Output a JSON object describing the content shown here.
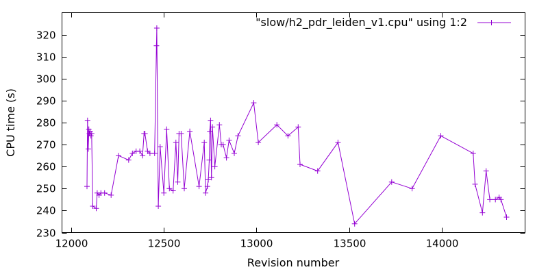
{
  "chart_data": {
    "type": "line",
    "title": "",
    "xlabel": "Revision number",
    "ylabel": "CPU time (s)",
    "xlim": [
      11950,
      14450
    ],
    "ylim": [
      230,
      330
    ],
    "xticks": [
      12000,
      12500,
      13000,
      13500,
      14000
    ],
    "yticks": [
      230,
      240,
      250,
      260,
      270,
      280,
      290,
      300,
      310,
      320
    ],
    "grid": false,
    "legend_position": "top-right",
    "marker": "plus",
    "color": "#9400D3",
    "series": [
      {
        "name": "\"slow/h2_pdr_leiden_v1.cpu\" using 1:2",
        "x": [
          12085,
          12088,
          12092,
          12095,
          12098,
          12102,
          12106,
          12110,
          12116,
          12135,
          12140,
          12150,
          12160,
          12180,
          12215,
          12255,
          12310,
          12330,
          12350,
          12370,
          12385,
          12393,
          12398,
          12412,
          12425,
          12450,
          12460,
          12462,
          12470,
          12480,
          12500,
          12515,
          12530,
          12550,
          12565,
          12575,
          12582,
          12593,
          12610,
          12640,
          12690,
          12718,
          12725,
          12735,
          12740,
          12745,
          12748,
          12752,
          12757,
          12762,
          12775,
          12800,
          12810,
          12820,
          12838,
          12852,
          12880,
          12900,
          12985,
          13010,
          13110,
          13170,
          13225,
          13235,
          13330,
          13440,
          13530,
          13730,
          13840,
          13995,
          14170,
          14180,
          14220,
          14240,
          14260,
          14290,
          14310,
          14320,
          14350
        ],
        "values": [
          251,
          281,
          268,
          277,
          275,
          276,
          274,
          275,
          242,
          241,
          248,
          247,
          248,
          248,
          247,
          265,
          263,
          266,
          267,
          267,
          265,
          275,
          275,
          267,
          266,
          266,
          315,
          323,
          242,
          269,
          248,
          277,
          250,
          249,
          271,
          253,
          275,
          275,
          250,
          276,
          251,
          271,
          248,
          251,
          254,
          263,
          276,
          281,
          255,
          278,
          260,
          279,
          270,
          270,
          264,
          272,
          266,
          274,
          289,
          271,
          279,
          274,
          278,
          261,
          258,
          271,
          234,
          253,
          250,
          274,
          266,
          252,
          239,
          258,
          245,
          245,
          246,
          245,
          237
        ]
      }
    ]
  }
}
